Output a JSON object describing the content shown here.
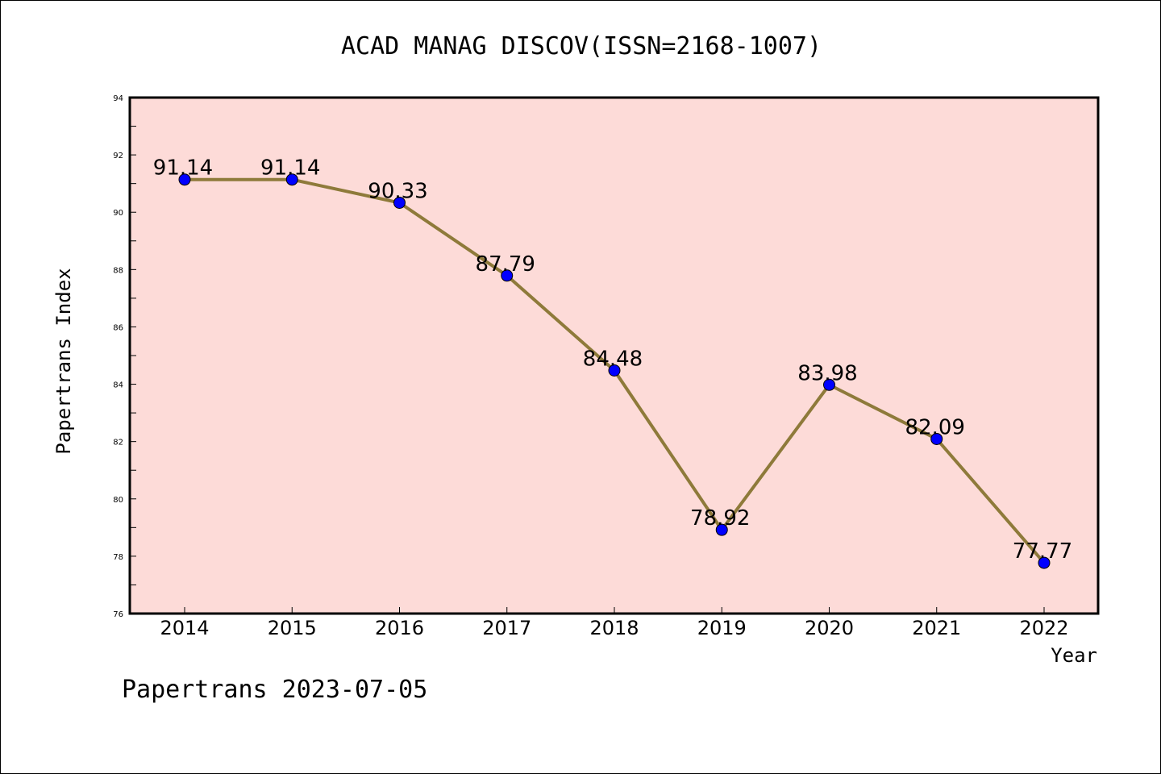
{
  "chart_data": {
    "type": "line",
    "title": "ACAD MANAG DISCOV(ISSN=2168-1007)",
    "xlabel": "Year",
    "ylabel": "Papertrans Index",
    "categories": [
      "2014",
      "2015",
      "2016",
      "2017",
      "2018",
      "2019",
      "2020",
      "2021",
      "2022"
    ],
    "values": [
      91.14,
      91.14,
      90.33,
      87.79,
      84.48,
      78.92,
      83.98,
      82.09,
      77.77
    ],
    "data_labels": [
      "91.14",
      "91.14",
      "90.33",
      "87.79",
      "84.48",
      "78.92",
      "83.98",
      "82.09",
      "77.77"
    ],
    "ylim": [
      76,
      94
    ],
    "yticks": [
      "76",
      "78",
      "80",
      "82",
      "84",
      "86",
      "88",
      "90",
      "92",
      "94"
    ],
    "grid": false,
    "legend": "none",
    "colors": {
      "plot_background": "#fddbd8",
      "line": "#8e7a3a",
      "marker": "#0000ff"
    }
  },
  "footer": "Papertrans 2023-07-05"
}
